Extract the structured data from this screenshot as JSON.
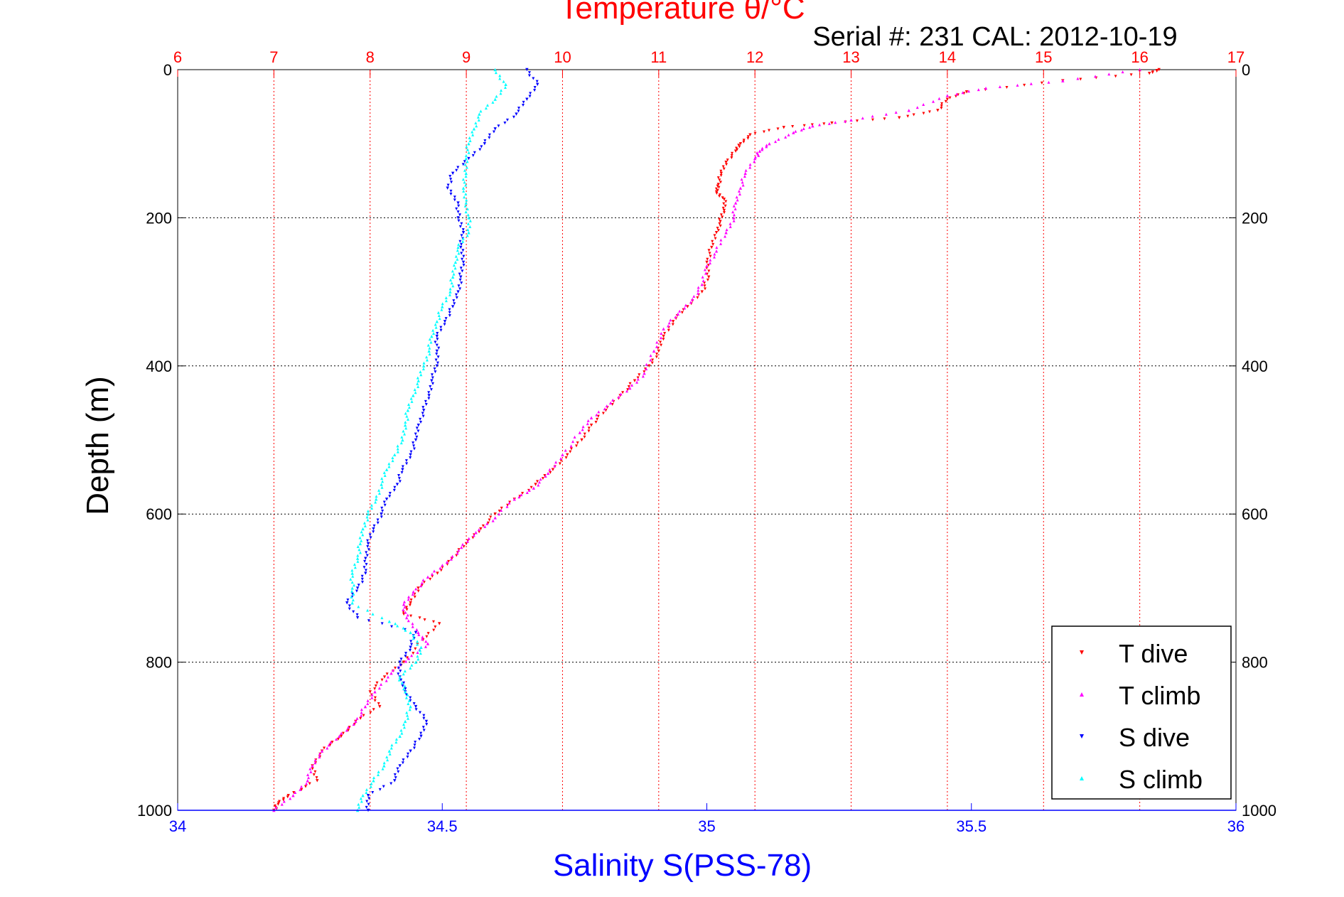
{
  "chart_data": {
    "type": "scatter",
    "title": "Temperature θ/°C",
    "subtitle": "Serial #: 231  CAL: 2012-10-19",
    "xlabel": "Salinity S(PSS-78)",
    "ylabel": "Depth (m)",
    "xlim_salinity": [
      34,
      36
    ],
    "xticks_salinity": [
      "34",
      "34.5",
      "35",
      "35.5",
      "36"
    ],
    "xlim_temperature": [
      6,
      17
    ],
    "xticks_temperature": [
      "6",
      "7",
      "8",
      "9",
      "10",
      "11",
      "12",
      "13",
      "14",
      "15",
      "16",
      "17"
    ],
    "ylim": [
      0,
      1000
    ],
    "yticks": [
      "0",
      "200",
      "400",
      "600",
      "800",
      "1000"
    ],
    "y_reversed": true,
    "grid": true,
    "legend_position": "bottom-right",
    "series": [
      {
        "name": "T dive",
        "axis": "temperature",
        "color": "#ff0000",
        "marker": "triangle-down",
        "points": [
          [
            16.2,
            0
          ],
          [
            16.1,
            5
          ],
          [
            15.2,
            15
          ],
          [
            14.2,
            30
          ],
          [
            14.0,
            40
          ],
          [
            13.9,
            55
          ],
          [
            13.5,
            65
          ],
          [
            12.8,
            72
          ],
          [
            12.3,
            78
          ],
          [
            11.95,
            88
          ],
          [
            11.85,
            100
          ],
          [
            11.8,
            110
          ],
          [
            11.7,
            125
          ],
          [
            11.65,
            140
          ],
          [
            11.62,
            155
          ],
          [
            11.6,
            165
          ],
          [
            11.68,
            175
          ],
          [
            11.68,
            190
          ],
          [
            11.64,
            205
          ],
          [
            11.6,
            220
          ],
          [
            11.55,
            240
          ],
          [
            11.5,
            260
          ],
          [
            11.52,
            280
          ],
          [
            11.45,
            300
          ],
          [
            11.3,
            320
          ],
          [
            11.15,
            340
          ],
          [
            11.05,
            360
          ],
          [
            11.0,
            380
          ],
          [
            10.9,
            400
          ],
          [
            10.75,
            420
          ],
          [
            10.6,
            440
          ],
          [
            10.45,
            460
          ],
          [
            10.3,
            480
          ],
          [
            10.2,
            500
          ],
          [
            10.05,
            520
          ],
          [
            9.9,
            540
          ],
          [
            9.72,
            560
          ],
          [
            9.5,
            580
          ],
          [
            9.3,
            600
          ],
          [
            9.15,
            620
          ],
          [
            9.0,
            640
          ],
          [
            8.85,
            660
          ],
          [
            8.7,
            680
          ],
          [
            8.5,
            700
          ],
          [
            8.42,
            720
          ],
          [
            8.35,
            735
          ],
          [
            8.72,
            748
          ],
          [
            8.55,
            770
          ],
          [
            8.35,
            800
          ],
          [
            8.15,
            820
          ],
          [
            8.0,
            840
          ],
          [
            8.1,
            860
          ],
          [
            7.85,
            880
          ],
          [
            7.7,
            900
          ],
          [
            7.5,
            920
          ],
          [
            7.4,
            940
          ],
          [
            7.45,
            960
          ],
          [
            7.15,
            980
          ],
          [
            7.05,
            990
          ],
          [
            7.0,
            1000
          ]
        ]
      },
      {
        "name": "T climb",
        "axis": "temperature",
        "color": "#ff00ff",
        "marker": "triangle-up",
        "points": [
          [
            16.0,
            0
          ],
          [
            15.2,
            15
          ],
          [
            14.4,
            25
          ],
          [
            14.0,
            35
          ],
          [
            13.6,
            55
          ],
          [
            13.0,
            68
          ],
          [
            12.6,
            76
          ],
          [
            12.4,
            85
          ],
          [
            12.15,
            100
          ],
          [
            12.05,
            110
          ],
          [
            12.0,
            120
          ],
          [
            11.9,
            140
          ],
          [
            11.85,
            160
          ],
          [
            11.8,
            180
          ],
          [
            11.78,
            200
          ],
          [
            11.7,
            220
          ],
          [
            11.6,
            245
          ],
          [
            11.5,
            265
          ],
          [
            11.45,
            290
          ],
          [
            11.35,
            310
          ],
          [
            11.2,
            330
          ],
          [
            11.05,
            350
          ],
          [
            10.95,
            380
          ],
          [
            10.85,
            410
          ],
          [
            10.7,
            430
          ],
          [
            10.5,
            450
          ],
          [
            10.3,
            470
          ],
          [
            10.18,
            490
          ],
          [
            10.0,
            520
          ],
          [
            9.85,
            545
          ],
          [
            9.7,
            565
          ],
          [
            9.5,
            580
          ],
          [
            9.3,
            605
          ],
          [
            9.1,
            625
          ],
          [
            8.95,
            645
          ],
          [
            8.8,
            665
          ],
          [
            8.6,
            685
          ],
          [
            8.45,
            705
          ],
          [
            8.35,
            722
          ],
          [
            8.38,
            740
          ],
          [
            8.5,
            760
          ],
          [
            8.6,
            775
          ],
          [
            8.4,
            795
          ],
          [
            8.22,
            815
          ],
          [
            8.05,
            840
          ],
          [
            7.95,
            860
          ],
          [
            7.85,
            880
          ],
          [
            7.68,
            900
          ],
          [
            7.5,
            920
          ],
          [
            7.4,
            940
          ],
          [
            7.35,
            960
          ],
          [
            7.2,
            980
          ],
          [
            7.0,
            1000
          ]
        ]
      },
      {
        "name": "S dive",
        "axis": "salinity",
        "color": "#0000ff",
        "marker": "triangle-down",
        "points": [
          [
            34.66,
            0
          ],
          [
            34.68,
            20
          ],
          [
            34.66,
            40
          ],
          [
            34.64,
            60
          ],
          [
            34.6,
            80
          ],
          [
            34.58,
            100
          ],
          [
            34.55,
            120
          ],
          [
            34.52,
            140
          ],
          [
            34.51,
            160
          ],
          [
            34.53,
            180
          ],
          [
            34.53,
            200
          ],
          [
            34.54,
            220
          ],
          [
            34.535,
            240
          ],
          [
            34.54,
            260
          ],
          [
            34.535,
            280
          ],
          [
            34.53,
            300
          ],
          [
            34.52,
            320
          ],
          [
            34.505,
            340
          ],
          [
            34.49,
            360
          ],
          [
            34.49,
            380
          ],
          [
            34.49,
            400
          ],
          [
            34.48,
            420
          ],
          [
            34.475,
            440
          ],
          [
            34.465,
            460
          ],
          [
            34.455,
            480
          ],
          [
            34.45,
            500
          ],
          [
            34.44,
            520
          ],
          [
            34.425,
            540
          ],
          [
            34.415,
            560
          ],
          [
            34.395,
            580
          ],
          [
            34.385,
            600
          ],
          [
            34.37,
            620
          ],
          [
            34.36,
            640
          ],
          [
            34.355,
            660
          ],
          [
            34.355,
            680
          ],
          [
            34.34,
            700
          ],
          [
            34.32,
            720
          ],
          [
            34.34,
            740
          ],
          [
            34.45,
            760
          ],
          [
            34.44,
            780
          ],
          [
            34.42,
            800
          ],
          [
            34.42,
            820
          ],
          [
            34.43,
            840
          ],
          [
            34.45,
            860
          ],
          [
            34.47,
            880
          ],
          [
            34.46,
            900
          ],
          [
            34.44,
            920
          ],
          [
            34.42,
            940
          ],
          [
            34.41,
            960
          ],
          [
            34.36,
            980
          ],
          [
            34.36,
            1000
          ]
        ]
      },
      {
        "name": "S climb",
        "axis": "salinity",
        "color": "#00ffff",
        "marker": "triangle-up",
        "points": [
          [
            34.6,
            0
          ],
          [
            34.62,
            20
          ],
          [
            34.6,
            40
          ],
          [
            34.57,
            60
          ],
          [
            34.56,
            80
          ],
          [
            34.55,
            100
          ],
          [
            34.545,
            120
          ],
          [
            34.545,
            140
          ],
          [
            34.54,
            160
          ],
          [
            34.545,
            180
          ],
          [
            34.55,
            200
          ],
          [
            34.55,
            220
          ],
          [
            34.53,
            240
          ],
          [
            34.525,
            260
          ],
          [
            34.52,
            280
          ],
          [
            34.515,
            300
          ],
          [
            34.5,
            320
          ],
          [
            34.49,
            340
          ],
          [
            34.48,
            360
          ],
          [
            34.475,
            380
          ],
          [
            34.465,
            400
          ],
          [
            34.455,
            420
          ],
          [
            34.445,
            440
          ],
          [
            34.435,
            460
          ],
          [
            34.43,
            480
          ],
          [
            34.425,
            500
          ],
          [
            34.41,
            520
          ],
          [
            34.395,
            540
          ],
          [
            34.385,
            560
          ],
          [
            34.375,
            580
          ],
          [
            34.36,
            600
          ],
          [
            34.35,
            620
          ],
          [
            34.345,
            640
          ],
          [
            34.34,
            660
          ],
          [
            34.33,
            680
          ],
          [
            34.33,
            700
          ],
          [
            34.33,
            720
          ],
          [
            34.4,
            745
          ],
          [
            34.44,
            760
          ],
          [
            34.46,
            780
          ],
          [
            34.45,
            800
          ],
          [
            34.42,
            820
          ],
          [
            34.43,
            840
          ],
          [
            34.44,
            860
          ],
          [
            34.43,
            880
          ],
          [
            34.42,
            900
          ],
          [
            34.4,
            920
          ],
          [
            34.39,
            940
          ],
          [
            34.37,
            960
          ],
          [
            34.35,
            980
          ],
          [
            34.34,
            1000
          ]
        ]
      }
    ]
  }
}
